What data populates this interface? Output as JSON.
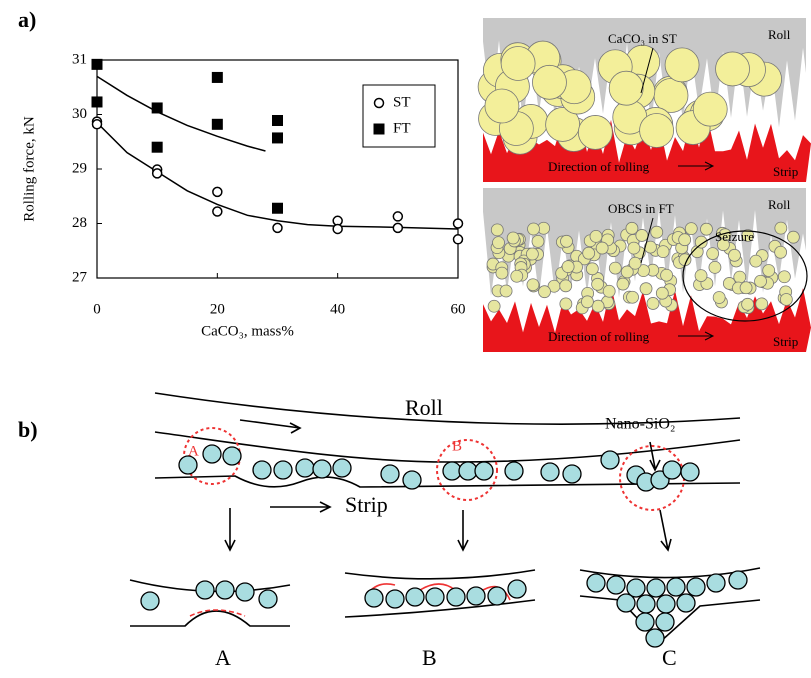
{
  "figure": {
    "panel_a": "a)",
    "panel_b": "b)",
    "image_top": {
      "label": "CaCO₃ in ST",
      "roll": "Roll",
      "direction": "Direction of rolling",
      "strip": "Strip"
    },
    "image_bottom": {
      "label": "OBCS in FT",
      "roll": "Roll",
      "seizure": "Seizure",
      "direction": "Direction of rolling",
      "strip": "Strip"
    },
    "diagram": {
      "roll": "Roll",
      "strip": "Strip",
      "particle": "Nano-SiO₂",
      "zones": [
        "A",
        "B"
      ],
      "insets": [
        "A",
        "B",
        "C"
      ]
    }
  },
  "chart_data": {
    "type": "scatter",
    "x_label": "CaCO₃, mass%",
    "y_label": "Rolling force, kN",
    "xlim": [
      0,
      60
    ],
    "ylim": [
      27,
      31
    ],
    "xticks": [
      0,
      20,
      40,
      60
    ],
    "yticks": [
      27,
      28,
      29,
      30,
      31
    ],
    "legend": "upper right",
    "series": [
      {
        "name": "ST",
        "marker": "circle",
        "color": "#000000",
        "x": [
          0,
          0,
          10,
          10,
          20,
          20,
          30,
          40,
          40,
          50,
          50,
          60,
          60
        ],
        "values": [
          29.87,
          29.82,
          28.99,
          28.92,
          28.58,
          28.22,
          27.92,
          28.05,
          27.9,
          28.13,
          27.92,
          28.0,
          27.71
        ]
      },
      {
        "name": "FT",
        "marker": "square",
        "color": "#000000",
        "x": [
          0,
          0,
          10,
          10,
          20,
          20,
          30,
          30,
          30
        ],
        "values": [
          30.92,
          30.23,
          30.12,
          29.4,
          30.68,
          29.82,
          29.89,
          29.57,
          28.28
        ]
      }
    ],
    "fits": [
      {
        "x": [
          0,
          5,
          10,
          15,
          20,
          25,
          30,
          35,
          40,
          50,
          60
        ],
        "values": [
          29.85,
          29.3,
          28.95,
          28.6,
          28.35,
          28.15,
          28.05,
          27.98,
          27.95,
          27.93,
          27.9
        ]
      },
      {
        "x": [
          0,
          5,
          10,
          15,
          20,
          25,
          28
        ],
        "values": [
          30.7,
          30.35,
          30.05,
          29.8,
          29.6,
          29.42,
          29.33
        ]
      }
    ]
  }
}
